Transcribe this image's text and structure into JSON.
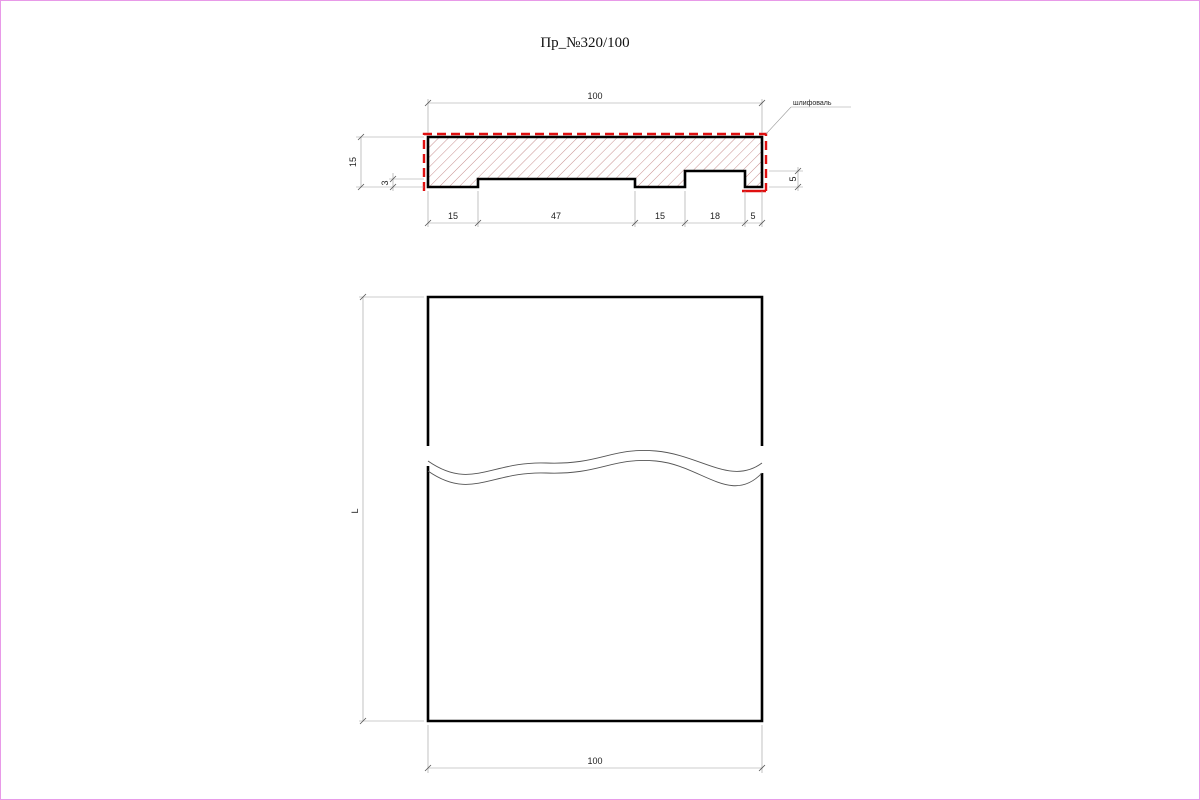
{
  "title": "Пр_№320/100",
  "section": {
    "overall_width": "100",
    "height": "15",
    "groove_depth_left": "3",
    "groove_depth_right": "5",
    "bottom_dims": [
      "15",
      "47",
      "15",
      "18",
      "5"
    ],
    "sanding_note": "шлифоваль"
  },
  "elevation": {
    "length_label": "L",
    "width_label": "100"
  },
  "colors": {
    "outline": "#000000",
    "sanding": "#e01010",
    "hatch": "#b06060",
    "frame": "#e89ae8"
  }
}
